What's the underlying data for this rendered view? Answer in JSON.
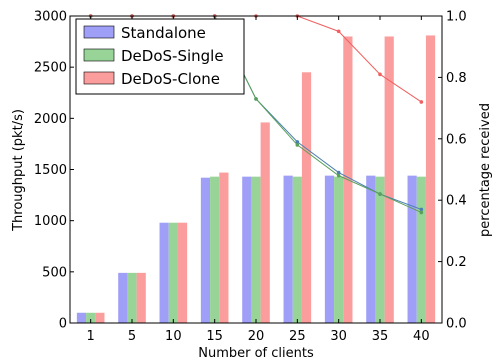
{
  "chart_data": {
    "type": "bar",
    "xlabel": "Number of clients",
    "ylabel": "Throughput (pkt/s)",
    "y2label": "percentage received",
    "categories": [
      "1",
      "5",
      "10",
      "15",
      "20",
      "25",
      "30",
      "35",
      "40"
    ],
    "ylim": [
      0,
      3000
    ],
    "y2lim": [
      0,
      1.0
    ],
    "yticks": [
      "0",
      "500",
      "1000",
      "1500",
      "2000",
      "2500",
      "3000"
    ],
    "y2ticks": [
      "0.0",
      "0.2",
      "0.4",
      "0.6",
      "0.8",
      "1.0"
    ],
    "legend_position": "top-left",
    "series": [
      {
        "name": "Standalone",
        "color": "#9f9ff7",
        "values": [
          100,
          490,
          980,
          1420,
          1430,
          1440,
          1440,
          1440,
          1440
        ]
      },
      {
        "name": "DeDoS-Single",
        "color": "#98d498",
        "values": [
          100,
          490,
          980,
          1430,
          1430,
          1430,
          1430,
          1430,
          1430
        ]
      },
      {
        "name": "DeDoS-Clone",
        "color": "#fc9d9d",
        "values": [
          100,
          490,
          980,
          1470,
          1960,
          2450,
          2800,
          2800,
          2810
        ]
      }
    ],
    "line_series": [
      {
        "axis": "right",
        "color": "#4a7fb0",
        "values": [
          1.0,
          1.0,
          1.0,
          1.0,
          0.73,
          0.59,
          0.49,
          0.42,
          0.37
        ]
      },
      {
        "axis": "right",
        "color": "#5aa05a",
        "values": [
          1.0,
          1.0,
          1.0,
          1.0,
          0.73,
          0.58,
          0.48,
          0.42,
          0.36
        ]
      },
      {
        "axis": "right",
        "color": "#f06060",
        "values": [
          1.0,
          1.0,
          1.0,
          1.0,
          1.0,
          1.0,
          0.95,
          0.81,
          0.72
        ]
      }
    ]
  }
}
